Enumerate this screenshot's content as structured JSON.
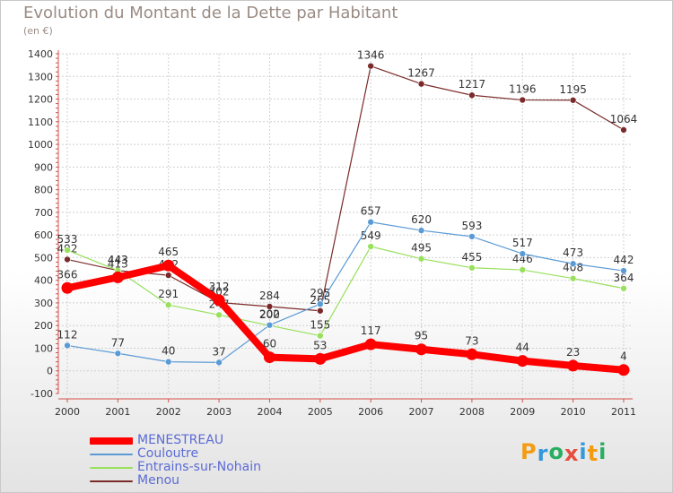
{
  "chart_data": {
    "type": "line",
    "title": "Evolution du Montant de la Dette par Habitant",
    "subtitle": "(en €)",
    "xlabel": "",
    "ylabel": "",
    "categories": [
      "2000",
      "2001",
      "2002",
      "2003",
      "2004",
      "2005",
      "2006",
      "2007",
      "2008",
      "2009",
      "2010",
      "2011"
    ],
    "ylim": [
      -100,
      1400
    ],
    "ytick_step": 100,
    "grid": true,
    "legend_position": "bottom-left",
    "series": [
      {
        "name": "MENESTREAU",
        "color": "#ff0000",
        "values": [
          366,
          413,
          465,
          312,
          60,
          53,
          117,
          95,
          73,
          44,
          23,
          4
        ],
        "labels": [
          "366",
          "413",
          "465",
          "312",
          "60",
          "53",
          "117",
          "95",
          "73",
          "44",
          "23",
          "4"
        ]
      },
      {
        "name": "Couloutre",
        "color": "#5b9bd5",
        "values": [
          112,
          77,
          40,
          37,
          202,
          295,
          657,
          620,
          593,
          517,
          473,
          442
        ],
        "labels": [
          "112",
          "77",
          "40",
          "37",
          "202",
          "295",
          "657",
          "620",
          "593",
          "517",
          "473",
          "442"
        ]
      },
      {
        "name": "Entrains-sur-Nohain",
        "color": "#99e05c",
        "values": [
          533,
          443,
          291,
          247,
          200,
          155,
          549,
          495,
          455,
          446,
          408,
          364
        ],
        "labels": [
          "533",
          "443",
          "291",
          "247",
          "200",
          "155",
          "549",
          "495",
          "455",
          "446",
          "408",
          "364"
        ]
      },
      {
        "name": "Menou",
        "color": "#7a2a2a",
        "values": [
          492,
          443,
          422,
          302,
          284,
          265,
          1346,
          1267,
          1217,
          1196,
          1195,
          1064
        ],
        "labels": [
          "492",
          "443",
          "422",
          "302",
          "284",
          "265",
          "1346",
          "1267",
          "1217",
          "1196",
          "1195",
          "1064"
        ]
      }
    ]
  },
  "logo": {
    "letters": [
      "P",
      "r",
      "o",
      "x",
      "i",
      "t",
      "i"
    ],
    "colors": [
      "#f39c12",
      "#3498db",
      "#27ae60",
      "#e74c3c",
      "#3498db",
      "#f39c12",
      "#27ae60"
    ]
  }
}
